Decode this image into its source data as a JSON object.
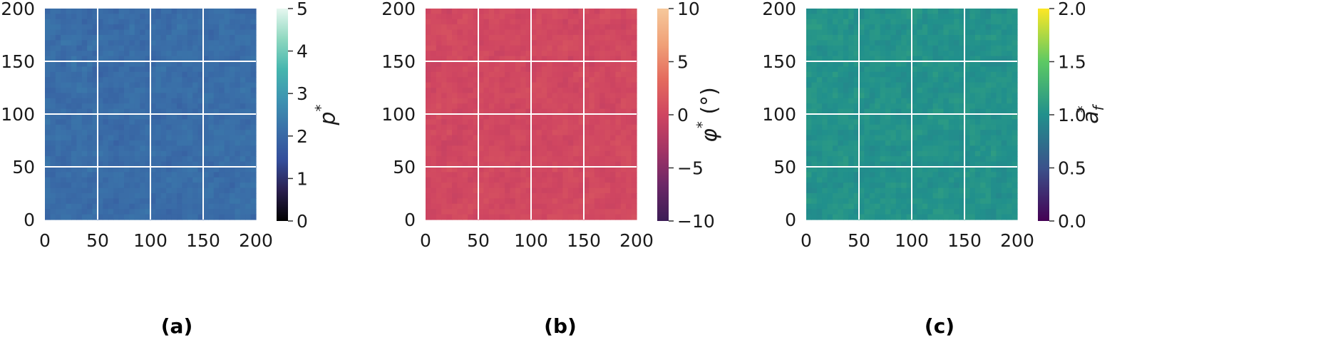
{
  "chart_data": [
    {
      "type": "heatmap",
      "panel_label": "(a)",
      "cbar_label": "p",
      "cbar_label_sup": "*",
      "cbar_label_sub": "",
      "cbar_label_suffix": "",
      "xlim": [
        0,
        200
      ],
      "ylim": [
        0,
        200
      ],
      "xticks": [
        0,
        50,
        100,
        150,
        200
      ],
      "yticks": [
        0,
        50,
        100,
        150,
        200
      ],
      "cbar_range": [
        0,
        5
      ],
      "cbar_ticks": [
        "0",
        "1",
        "2",
        "3",
        "4",
        "5"
      ],
      "colormap": [
        "#000000",
        "#2a1f4e",
        "#344d9a",
        "#3a6fa8",
        "#3d93b1",
        "#45b6ae",
        "#8fd8c0",
        "#e6f7f0"
      ],
      "base_value": 2.1,
      "grid": true,
      "grid_color": "#ffffff"
    },
    {
      "type": "heatmap",
      "panel_label": "(b)",
      "cbar_label": "φ",
      "cbar_label_sup": "*",
      "cbar_label_sub": "",
      "cbar_label_suffix": "(°)",
      "xlim": [
        0,
        200
      ],
      "ylim": [
        0,
        200
      ],
      "xticks": [
        0,
        50,
        100,
        150,
        200
      ],
      "yticks": [
        0,
        50,
        100,
        150,
        200
      ],
      "cbar_range": [
        -10,
        10
      ],
      "cbar_ticks": [
        "−10",
        "−5",
        "0",
        "5",
        "10"
      ],
      "colormap": [
        "#3b1c55",
        "#6b2767",
        "#a33465",
        "#cf4561",
        "#e46b5e",
        "#f0a178",
        "#f6c89b"
      ],
      "base_value": 0.3,
      "grid": true,
      "grid_color": "#ffffff"
    },
    {
      "type": "heatmap",
      "panel_label": "(c)",
      "cbar_label": "a",
      "cbar_label_sup": "*",
      "cbar_label_sub": "f",
      "cbar_label_suffix": "",
      "xlim": [
        0,
        200
      ],
      "ylim": [
        0,
        200
      ],
      "xticks": [
        0,
        50,
        100,
        150,
        200
      ],
      "yticks": [
        0,
        50,
        100,
        150,
        200
      ],
      "cbar_range": [
        0,
        2
      ],
      "cbar_ticks": [
        "0.0",
        "0.5",
        "1.0",
        "1.5",
        "2.0"
      ],
      "colormap": [
        "#440154",
        "#3b528b",
        "#21908c",
        "#5dc963",
        "#fde725"
      ],
      "base_value": 1.02,
      "grid": true,
      "grid_color": "#ffffff"
    }
  ]
}
